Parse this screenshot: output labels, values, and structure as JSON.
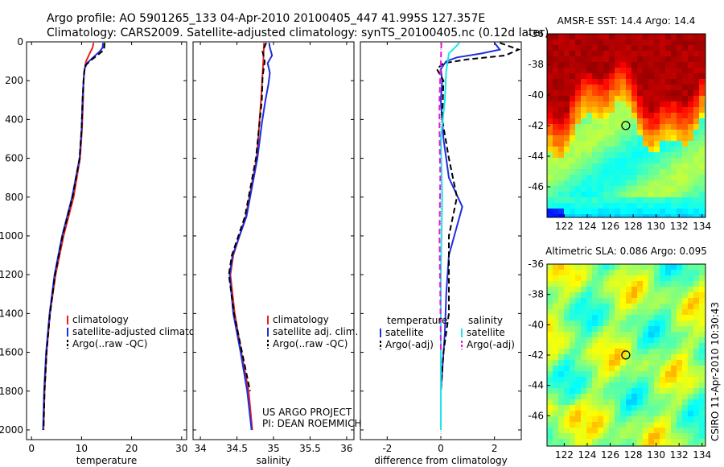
{
  "title_line1": "Argo profile: AO 5901265_133 04-Apr-2010 20100405_447 41.995S 127.357E",
  "title_line2": "Climatology: CARS2009. Satellite-adjusted climatology: synTS_20100405.nc (0.12d later)",
  "credit_line1": "US ARGO PROJECT",
  "credit_line2": "PI: DEAN ROEMMICH",
  "side_label": "CSIRO 11-Apr-2010 10:30:43",
  "colors": {
    "climatology": "#e8201c",
    "satellite": "#1f2ee0",
    "argo": "#000000",
    "salinity_sat": "#1ee6e6",
    "salinity_argo": "#e619d4",
    "marker": "#000000"
  },
  "chart_data": [
    {
      "type": "line",
      "xlabel": "temperature",
      "ylabel": "",
      "xlim": [
        -1,
        31
      ],
      "ylim": [
        2050,
        0
      ],
      "xticks": [
        0,
        10,
        20,
        30
      ],
      "yticks": [
        0,
        200,
        400,
        600,
        800,
        1000,
        1200,
        1400,
        1600,
        1800,
        2000
      ],
      "legend_position": "bottom-left",
      "legend": [
        "climatology",
        "satellite-adjusted climatology",
        "Argo(..raw -QC)"
      ],
      "series": [
        {
          "name": "climatology",
          "color": "#e8201c",
          "dash": "solid",
          "points": [
            [
              12.4,
              5
            ],
            [
              12.2,
              30
            ],
            [
              11.6,
              60
            ],
            [
              10.9,
              100
            ],
            [
              10.6,
              140
            ],
            [
              10.4,
              200
            ],
            [
              10.3,
              300
            ],
            [
              10.1,
              450
            ],
            [
              9.7,
              600
            ],
            [
              8.4,
              800
            ],
            [
              6.4,
              1000
            ],
            [
              4.8,
              1200
            ],
            [
              3.7,
              1400
            ],
            [
              3.0,
              1600
            ],
            [
              2.6,
              1800
            ],
            [
              2.4,
              2000
            ]
          ]
        },
        {
          "name": "satellite-adjusted climatology",
          "color": "#1f2ee0",
          "dash": "solid",
          "points": [
            [
              14.3,
              5
            ],
            [
              14.2,
              30
            ],
            [
              13.6,
              50
            ],
            [
              12.3,
              80
            ],
            [
              11.1,
              110
            ],
            [
              10.6,
              140
            ],
            [
              10.4,
              200
            ],
            [
              10.2,
              300
            ],
            [
              10.0,
              450
            ],
            [
              9.6,
              600
            ],
            [
              8.1,
              800
            ],
            [
              6.1,
              1000
            ],
            [
              4.6,
              1200
            ],
            [
              3.6,
              1400
            ],
            [
              2.9,
              1600
            ],
            [
              2.5,
              1800
            ],
            [
              2.3,
              2000
            ]
          ]
        },
        {
          "name": "Argo(..raw -QC)",
          "color": "#000000",
          "dash": "dashed",
          "points": [
            [
              14.6,
              5
            ],
            [
              14.5,
              40
            ],
            [
              13.6,
              60
            ],
            [
              12.1,
              90
            ],
            [
              10.8,
              120
            ],
            [
              10.5,
              160
            ],
            [
              10.4,
              200
            ],
            [
              10.2,
              300
            ],
            [
              10.0,
              450
            ],
            [
              9.6,
              600
            ],
            [
              8.2,
              800
            ],
            [
              6.2,
              1000
            ],
            [
              4.7,
              1200
            ],
            [
              3.7,
              1400
            ],
            [
              3.0,
              1600
            ],
            [
              2.6,
              1800
            ],
            [
              2.4,
              2000
            ]
          ]
        }
      ]
    },
    {
      "type": "line",
      "xlabel": "salinity",
      "xlim": [
        33.9,
        36.1
      ],
      "ylim": [
        2050,
        0
      ],
      "xticks": [
        34,
        34.5,
        35,
        35.5,
        36
      ],
      "legend_position": "bottom-center",
      "legend": [
        "climatology",
        "satellite adj. clim.",
        "Argo(..raw -QC)"
      ],
      "series": [
        {
          "name": "climatology",
          "color": "#e8201c",
          "dash": "solid",
          "points": [
            [
              34.87,
              5
            ],
            [
              34.86,
              100
            ],
            [
              34.83,
              300
            ],
            [
              34.77,
              600
            ],
            [
              34.62,
              900
            ],
            [
              34.45,
              1100
            ],
            [
              34.41,
              1200
            ],
            [
              34.47,
              1400
            ],
            [
              34.56,
              1600
            ],
            [
              34.66,
              1800
            ],
            [
              34.71,
              2000
            ]
          ]
        },
        {
          "name": "satellite adj. clim.",
          "color": "#1f2ee0",
          "dash": "solid",
          "points": [
            [
              34.94,
              5
            ],
            [
              34.95,
              30
            ],
            [
              34.98,
              70
            ],
            [
              34.92,
              110
            ],
            [
              34.95,
              160
            ],
            [
              34.93,
              220
            ],
            [
              34.89,
              300
            ],
            [
              34.84,
              420
            ],
            [
              34.78,
              600
            ],
            [
              34.63,
              900
            ],
            [
              34.44,
              1100
            ],
            [
              34.4,
              1200
            ],
            [
              34.45,
              1400
            ],
            [
              34.55,
              1600
            ],
            [
              34.64,
              1800
            ],
            [
              34.7,
              2000
            ]
          ]
        },
        {
          "name": "Argo(..raw -QC)",
          "color": "#000000",
          "dash": "dashed",
          "points": [
            [
              34.9,
              5
            ],
            [
              34.85,
              50
            ],
            [
              34.88,
              100
            ],
            [
              34.85,
              180
            ],
            [
              34.84,
              300
            ],
            [
              34.8,
              450
            ],
            [
              34.76,
              600
            ],
            [
              34.61,
              900
            ],
            [
              34.43,
              1100
            ],
            [
              34.39,
              1200
            ],
            [
              34.46,
              1400
            ],
            [
              34.57,
              1600
            ],
            [
              34.68,
              1800
            ]
          ]
        }
      ]
    },
    {
      "type": "line",
      "xlabel": "difference from climatology",
      "xlim": [
        -3,
        3.0
      ],
      "ylim": [
        2050,
        0
      ],
      "xticks": [
        -2,
        0,
        2
      ],
      "legend_position": "bottom",
      "legend_groups": [
        {
          "title": "temperature",
          "items": [
            "satellite",
            "Argo(-adj)"
          ]
        },
        {
          "title": "salinity",
          "items": [
            "satellite",
            "Argo(-adj)"
          ]
        }
      ],
      "series": [
        {
          "name": "temperature satellite",
          "color": "#1f2ee0",
          "dash": "solid",
          "points": [
            [
              2.0,
              5
            ],
            [
              2.2,
              40
            ],
            [
              1.5,
              60
            ],
            [
              0.6,
              80
            ],
            [
              0.2,
              100
            ],
            [
              0.0,
              140
            ],
            [
              0.05,
              200
            ],
            [
              0.0,
              300
            ],
            [
              0.1,
              500
            ],
            [
              0.3,
              700
            ],
            [
              0.8,
              850
            ],
            [
              0.5,
              1000
            ],
            [
              0.3,
              1100
            ],
            [
              0.2,
              1300
            ],
            [
              0.15,
              1500
            ],
            [
              0.05,
              1700
            ],
            [
              0.0,
              1800
            ]
          ]
        },
        {
          "name": "temperature Argo(-adj)",
          "color": "#000000",
          "dash": "dashed",
          "points": [
            [
              2.2,
              5
            ],
            [
              2.9,
              40
            ],
            [
              2.4,
              70
            ],
            [
              1.0,
              90
            ],
            [
              0.1,
              110
            ],
            [
              -0.15,
              140
            ],
            [
              0.1,
              200
            ],
            [
              0.05,
              400
            ],
            [
              0.3,
              600
            ],
            [
              0.6,
              800
            ],
            [
              0.3,
              1000
            ],
            [
              0.3,
              1200
            ],
            [
              0.3,
              1400
            ],
            [
              0.1,
              1600
            ],
            [
              0.0,
              1800
            ]
          ]
        },
        {
          "name": "salinity satellite",
          "color": "#1ee6e6",
          "dash": "solid",
          "points": [
            [
              0.7,
              5
            ],
            [
              0.3,
              60
            ],
            [
              0.2,
              150
            ],
            [
              0.15,
              300
            ],
            [
              0.0,
              500
            ],
            [
              0.05,
              800
            ],
            [
              0.0,
              1200
            ],
            [
              0.0,
              1600
            ],
            [
              0.0,
              2000
            ]
          ]
        },
        {
          "name": "salinity Argo(-adj)",
          "color": "#e619d4",
          "dash": "dashed",
          "points": [
            [
              0.02,
              5
            ],
            [
              0.0,
              100
            ],
            [
              -0.05,
              300
            ],
            [
              -0.05,
              450
            ],
            [
              -0.02,
              700
            ],
            [
              -0.05,
              1000
            ],
            [
              -0.02,
              1300
            ],
            [
              0.0,
              1600
            ]
          ]
        }
      ]
    },
    {
      "type": "heatmap",
      "title": "AMSR-E SST: 14.4 Argo: 14.4",
      "xlim": [
        120.5,
        134.3
      ],
      "ylim": [
        -48,
        -36
      ],
      "xticks": [
        122,
        124,
        126,
        128,
        130,
        132,
        134
      ],
      "yticks": [
        -36,
        -38,
        -40,
        -42,
        -44,
        -46
      ],
      "marker": {
        "lon": 127.357,
        "lat": -41.995
      },
      "colormap": "jet"
    },
    {
      "type": "heatmap",
      "title": "Altimetric SLA: 0.086 Argo: 0.095",
      "xlim": [
        120.5,
        134.3
      ],
      "ylim": [
        -48,
        -36
      ],
      "xticks": [
        122,
        124,
        126,
        128,
        130,
        132,
        134
      ],
      "yticks": [
        -36,
        -38,
        -40,
        -42,
        -44,
        -46
      ],
      "marker": {
        "lon": 127.357,
        "lat": -41.995
      },
      "colormap": "jet"
    }
  ]
}
